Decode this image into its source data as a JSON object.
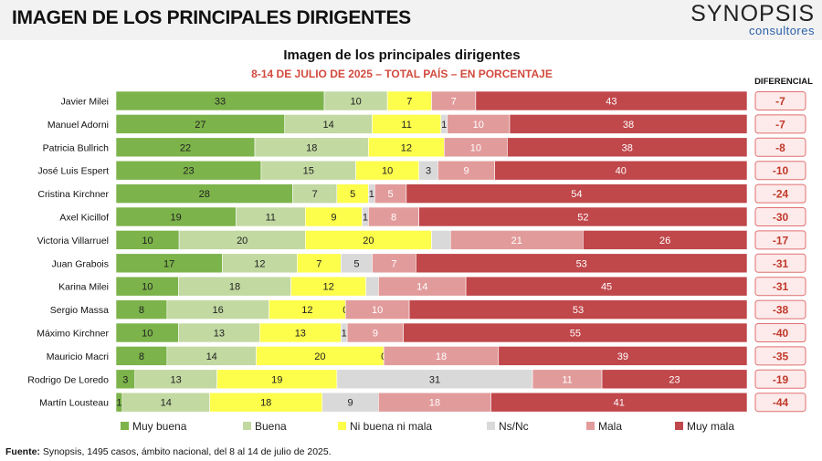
{
  "page": {
    "title": "IMAGEN DE LOS PRINCIPALES DIRIGENTES",
    "logo_name": "SYNOPSIS",
    "logo_sub": "consultores",
    "footer_label": "Fuente:",
    "footer_text": " Synopsis, 1495 casos, ámbito nacional, del 8 al 14 de julio de 2025.",
    "diff_header": "DIFERENCIAL"
  },
  "chart_data": {
    "type": "bar",
    "orientation": "horizontal",
    "stacked": true,
    "title": "Imagen de los principales dirigentes",
    "subtitle": "8-14 DE JULIO DE 2025 – TOTAL PAÍS – EN PORCENTAJE",
    "categories": [
      "Javier Milei",
      "Manuel Adorni",
      "Patricia Bullrich",
      "José Luis Espert",
      "Cristina Kirchner",
      "Axel Kicillof",
      "Victoria Villarruel",
      "Juan Grabois",
      "Karina Milei",
      "Sergio Massa",
      "Máximo Kirchner",
      "Mauricio Macri",
      "Rodrigo De Loredo",
      "Martín Lousteau"
    ],
    "series": [
      {
        "name": "Muy buena",
        "color": "#7cb34a",
        "values": [
          33,
          27,
          22,
          23,
          28,
          19,
          10,
          17,
          10,
          8,
          10,
          8,
          3,
          1
        ]
      },
      {
        "name": "Buena",
        "color": "#c2d9a2",
        "values": [
          10,
          14,
          18,
          15,
          7,
          11,
          20,
          12,
          18,
          16,
          13,
          14,
          13,
          14
        ]
      },
      {
        "name": "Ni buena ni mala",
        "color": "#fdfd4b",
        "values": [
          7,
          11,
          12,
          10,
          5,
          9,
          20,
          7,
          12,
          12,
          13,
          20,
          19,
          18
        ]
      },
      {
        "name": "Ns/Nc",
        "color": "#d9d9d9",
        "values": [
          0,
          1,
          0,
          3,
          1,
          1,
          3,
          5,
          2,
          0,
          1,
          0,
          31,
          9
        ]
      },
      {
        "name": "Mala",
        "color": "#e29b9b",
        "values": [
          7,
          10,
          10,
          9,
          5,
          8,
          21,
          7,
          14,
          10,
          9,
          18,
          11,
          18
        ]
      },
      {
        "name": "Muy mala",
        "color": "#c0474a",
        "values": [
          43,
          38,
          38,
          40,
          54,
          52,
          26,
          53,
          45,
          53,
          55,
          39,
          23,
          41
        ]
      }
    ],
    "labels": [
      [
        "33",
        "10",
        "7",
        "",
        "7",
        "43"
      ],
      [
        "27",
        "14",
        "11",
        "1",
        "10",
        "38"
      ],
      [
        "22",
        "18",
        "12",
        "",
        "10",
        "38"
      ],
      [
        "23",
        "15",
        "10",
        "3",
        "9",
        "40"
      ],
      [
        "28",
        "7",
        "5",
        "1",
        "5",
        "54"
      ],
      [
        "19",
        "11",
        "9",
        "1",
        "8",
        "52"
      ],
      [
        "10",
        "20",
        "20",
        "",
        "21",
        "26"
      ],
      [
        "17",
        "12",
        "7",
        "5",
        "7",
        "53"
      ],
      [
        "10",
        "18",
        "12",
        "",
        "14",
        "45"
      ],
      [
        "8",
        "16",
        "12",
        "0",
        "10",
        "53"
      ],
      [
        "10",
        "13",
        "13",
        "1",
        "9",
        "55"
      ],
      [
        "8",
        "14",
        "20",
        "0",
        "18",
        "39"
      ],
      [
        "3",
        "13",
        "19",
        "31",
        "11",
        "23"
      ],
      [
        "1",
        "14",
        "18",
        "9",
        "18",
        "41"
      ]
    ],
    "diferencial": [
      "-7",
      "-7",
      "-8",
      "-10",
      "-24",
      "-30",
      "-17",
      "-31",
      "-31",
      "-38",
      "-40",
      "-35",
      "-19",
      "-44"
    ],
    "xlim": [
      0,
      100
    ],
    "legend_position": "bottom"
  }
}
